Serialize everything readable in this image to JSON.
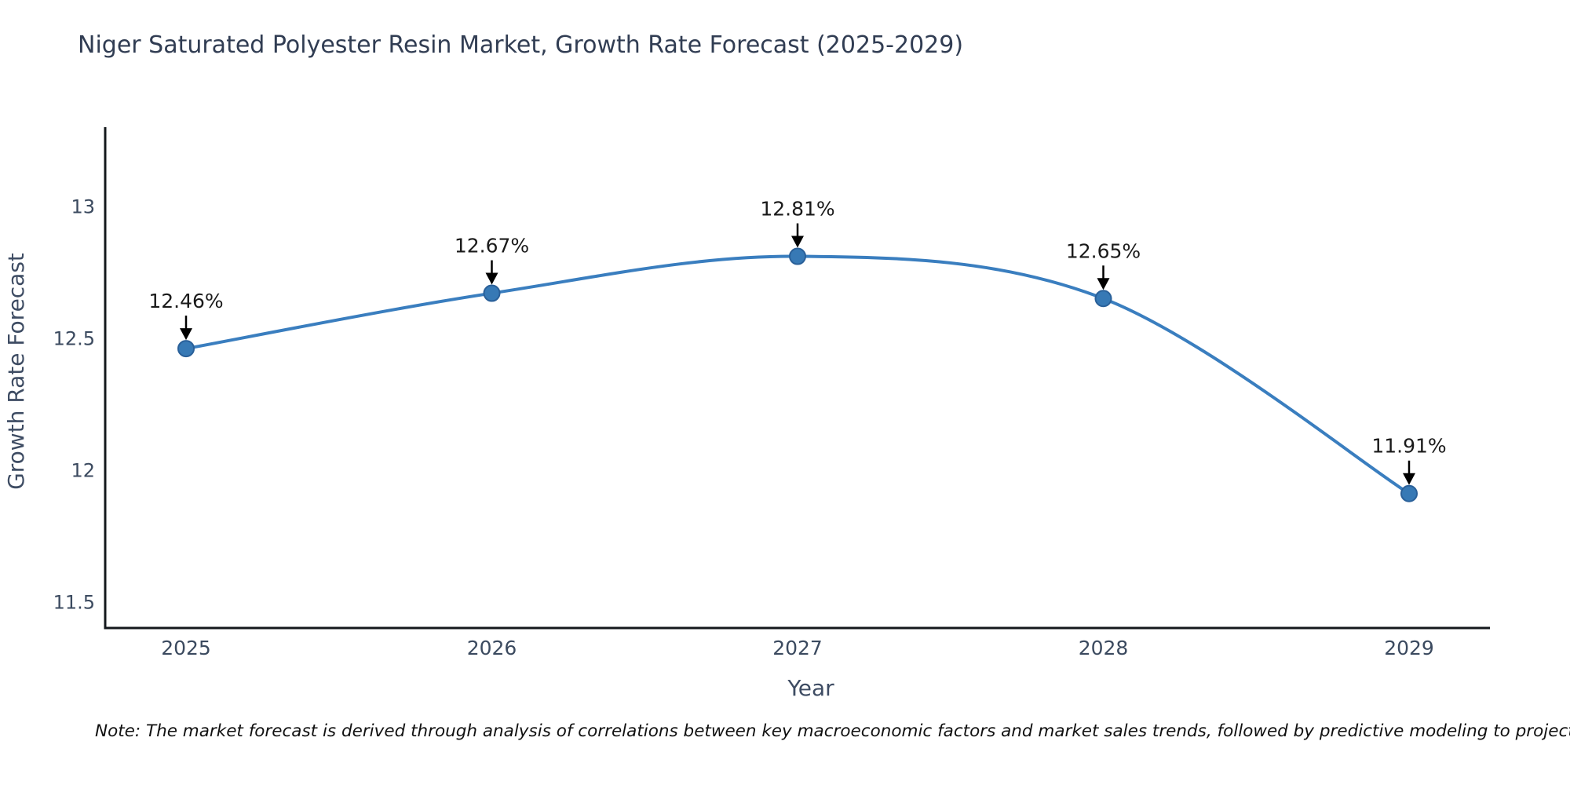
{
  "note": "Note: The market forecast is derived through analysis of correlations between key macroeconomic factors and market sales trends, followed by predictive modeling to project future sal",
  "chart_data": {
    "type": "line",
    "title": "Niger Saturated Polyester Resin Market, Growth Rate Forecast (2025-2029)",
    "x": [
      2025,
      2026,
      2027,
      2028,
      2029
    ],
    "xtick_labels": [
      "2025",
      "2026",
      "2027",
      "2028",
      "2029"
    ],
    "series": [
      {
        "name": "Growth Rate Forecast",
        "values": [
          12.46,
          12.67,
          12.81,
          12.65,
          11.91
        ],
        "point_labels": [
          "12.46%",
          "12.67%",
          "12.81%",
          "12.65%",
          "11.91%"
        ]
      }
    ],
    "xlabel": "Year",
    "ylabel": "Growth Rate Forecast",
    "ylim": [
      11.4,
      13.3
    ],
    "yticks": [
      11.5,
      12,
      12.5,
      13
    ],
    "ytick_labels": [
      "11.5",
      "12",
      "12.5",
      "13"
    ],
    "grid": false,
    "legend": "none",
    "annotation_style": "black-down-arrows",
    "marker": "circle",
    "line_smooth": true,
    "colors": {
      "line": "#3a7ebf",
      "marker_fill": "#3779b5",
      "marker_edge": "#2a6099",
      "arrow": "#000000",
      "annotation_text": "#1a1a1a",
      "tick_text": "#3b4a5f",
      "axis_label_text": "#3e4c63",
      "spine": "#14181c",
      "background": "#ffffff"
    }
  }
}
